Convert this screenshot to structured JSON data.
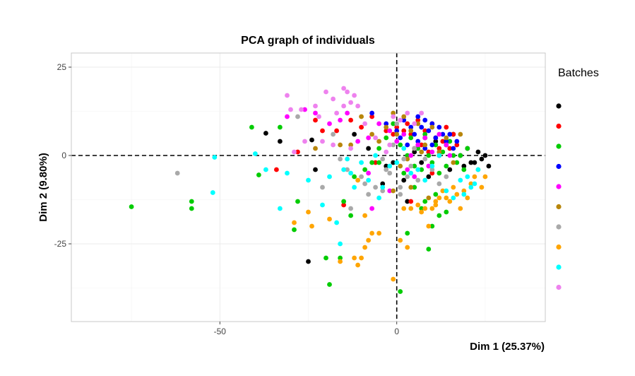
{
  "chart_data": {
    "type": "scatter",
    "title": "PCA graph of individuals",
    "xlabel": "Dim 1 (25.37%)",
    "ylabel": "Dim 2 (9.80%)",
    "xlim": [
      -92,
      42
    ],
    "ylim": [
      -47,
      29
    ],
    "x_ticks": [
      -50,
      0
    ],
    "y_ticks": [
      25,
      0,
      -25
    ],
    "x_tick_labels": [
      "-50",
      "0"
    ],
    "y_tick_labels": [
      "25",
      "0",
      "-25"
    ],
    "reference_lines": {
      "x": 0,
      "y": 0,
      "style": "dashed"
    },
    "grid": true,
    "legend": {
      "title": "Batches",
      "position": "right"
    },
    "series": [
      {
        "color": "#000000",
        "points": [
          [
            -37,
            6.3
          ],
          [
            -33,
            4
          ],
          [
            -24,
            4.4
          ],
          [
            -23,
            -4
          ],
          [
            -25,
            -30
          ],
          [
            -12,
            6
          ],
          [
            -8,
            2
          ],
          [
            -3,
            -3
          ],
          [
            -1,
            -2
          ],
          [
            2,
            -7
          ],
          [
            5,
            1
          ],
          [
            8,
            5
          ],
          [
            11,
            4
          ],
          [
            12,
            0
          ],
          [
            14,
            3
          ],
          [
            16,
            6
          ],
          [
            18,
            0
          ],
          [
            20,
            2
          ],
          [
            21,
            -2
          ],
          [
            22,
            -2
          ],
          [
            23,
            1
          ],
          [
            24,
            -1
          ],
          [
            25,
            0
          ],
          [
            26,
            -3
          ],
          [
            -4,
            -8
          ],
          [
            3,
            -13
          ],
          [
            7,
            -2
          ],
          [
            9,
            -6
          ],
          [
            15,
            -4
          ],
          [
            19,
            -3
          ]
        ]
      },
      {
        "color": "#ff0000",
        "points": [
          [
            -34,
            -4
          ],
          [
            -28,
            1
          ],
          [
            -23,
            10
          ],
          [
            -21,
            7
          ],
          [
            -17,
            7
          ],
          [
            -13,
            10
          ],
          [
            -10,
            8
          ],
          [
            -7,
            11
          ],
          [
            -3,
            7
          ],
          [
            -1,
            6
          ],
          [
            0,
            8
          ],
          [
            2,
            7
          ],
          [
            3,
            9
          ],
          [
            4,
            6
          ],
          [
            5,
            2
          ],
          [
            6,
            10
          ],
          [
            7,
            3
          ],
          [
            8,
            7
          ],
          [
            9,
            1
          ],
          [
            10,
            9
          ],
          [
            11,
            5
          ],
          [
            12,
            2
          ],
          [
            13,
            4
          ],
          [
            14,
            8
          ],
          [
            15,
            2
          ],
          [
            16,
            6
          ],
          [
            17,
            3
          ],
          [
            -6,
            -2
          ],
          [
            -15,
            -14
          ],
          [
            4,
            -13
          ],
          [
            10,
            -5
          ]
        ]
      },
      {
        "color": "#00cc00",
        "points": [
          [
            -75,
            -14.5
          ],
          [
            -58,
            -13
          ],
          [
            -58,
            -15
          ],
          [
            -41,
            8
          ],
          [
            -39,
            -5.5
          ],
          [
            -33,
            8
          ],
          [
            -29,
            -21
          ],
          [
            -28,
            -13
          ],
          [
            -20,
            -29
          ],
          [
            -19,
            -36.5
          ],
          [
            -13,
            -17
          ],
          [
            -16,
            -29
          ],
          [
            -15,
            -13
          ],
          [
            -12,
            -6
          ],
          [
            -9,
            -4
          ],
          [
            -7,
            -2
          ],
          [
            -5,
            2
          ],
          [
            -3,
            5
          ],
          [
            -1,
            9
          ],
          [
            1,
            3
          ],
          [
            2,
            -5
          ],
          [
            3,
            0
          ],
          [
            4,
            5
          ],
          [
            5,
            -3
          ],
          [
            6,
            2
          ],
          [
            7,
            -4
          ],
          [
            8,
            6
          ],
          [
            9,
            0
          ],
          [
            10,
            -2
          ],
          [
            11,
            3
          ],
          [
            12,
            -5
          ],
          [
            13,
            1
          ],
          [
            14,
            -3
          ],
          [
            15,
            4
          ],
          [
            16,
            0
          ],
          [
            17,
            -2
          ],
          [
            18,
            0
          ],
          [
            19,
            -4
          ],
          [
            20,
            2
          ],
          [
            9,
            -26.5
          ],
          [
            10,
            -20
          ],
          [
            7,
            -15
          ],
          [
            11,
            -11
          ],
          [
            12,
            -17
          ],
          [
            14,
            -16
          ],
          [
            1,
            -38.5
          ],
          [
            3,
            -22
          ],
          [
            -5,
            -2
          ],
          [
            5,
            -9
          ],
          [
            8,
            -13
          ]
        ]
      },
      {
        "color": "#0000ff",
        "points": [
          [
            -7,
            12
          ],
          [
            -3,
            9
          ],
          [
            0,
            7
          ],
          [
            2,
            10
          ],
          [
            4,
            8
          ],
          [
            5,
            6
          ],
          [
            6,
            11
          ],
          [
            7,
            8
          ],
          [
            8,
            10
          ],
          [
            9,
            7
          ],
          [
            10,
            9
          ],
          [
            11,
            5
          ],
          [
            12,
            8
          ],
          [
            13,
            6
          ],
          [
            14,
            4
          ],
          [
            15,
            6
          ],
          [
            16,
            2
          ],
          [
            17,
            4
          ],
          [
            6,
            4
          ],
          [
            8,
            2
          ],
          [
            10,
            3
          ],
          [
            3,
            3
          ],
          [
            1,
            5
          ]
        ]
      },
      {
        "color": "#ff00ff",
        "points": [
          [
            -31,
            11
          ],
          [
            -26,
            13
          ],
          [
            -23,
            12
          ],
          [
            -19,
            9
          ],
          [
            -16,
            10
          ],
          [
            -14,
            12
          ],
          [
            -11,
            4
          ],
          [
            -8,
            5
          ],
          [
            -5,
            9
          ],
          [
            -2,
            7
          ],
          [
            0,
            4
          ],
          [
            2,
            6
          ],
          [
            4,
            0
          ],
          [
            6,
            3
          ],
          [
            8,
            5
          ],
          [
            10,
            1
          ],
          [
            12,
            6
          ],
          [
            14,
            3
          ],
          [
            15,
            0
          ],
          [
            -7,
            -15
          ],
          [
            -2,
            -10
          ],
          [
            -8,
            -5
          ],
          [
            5,
            -6
          ],
          [
            9,
            -3
          ],
          [
            3,
            -4
          ]
        ]
      },
      {
        "color": "#b8860b",
        "points": [
          [
            -23,
            2
          ],
          [
            -16,
            3
          ],
          [
            -13,
            3
          ],
          [
            -10,
            11
          ],
          [
            -7,
            6
          ],
          [
            -5,
            4
          ],
          [
            -3,
            8
          ],
          [
            -1,
            12
          ],
          [
            0,
            6
          ],
          [
            2,
            11
          ],
          [
            4,
            7
          ],
          [
            6,
            9
          ],
          [
            8,
            3
          ],
          [
            10,
            8
          ],
          [
            12,
            1
          ],
          [
            14,
            5
          ],
          [
            16,
            -2
          ],
          [
            18,
            6
          ],
          [
            1,
            -3
          ],
          [
            3,
            -1
          ],
          [
            7,
            1
          ],
          [
            -1,
            -10
          ],
          [
            4,
            -9
          ],
          [
            9,
            -12
          ]
        ]
      },
      {
        "color": "#a9a9a9",
        "points": [
          [
            -62,
            -5
          ],
          [
            -28,
            11
          ],
          [
            -21,
            -9
          ],
          [
            -18,
            6
          ],
          [
            -16,
            -1
          ],
          [
            -14,
            -4
          ],
          [
            -13,
            -15
          ],
          [
            -10,
            -6
          ],
          [
            -8,
            -11
          ],
          [
            -6,
            -9
          ],
          [
            -4,
            -10
          ],
          [
            -3,
            -4
          ],
          [
            -1,
            3
          ],
          [
            0,
            9
          ],
          [
            1,
            -11
          ],
          [
            2,
            -1
          ],
          [
            3,
            -6
          ],
          [
            4,
            -3
          ],
          [
            5,
            2
          ],
          [
            6,
            -7
          ],
          [
            8,
            -1
          ],
          [
            10,
            -4
          ],
          [
            12,
            -8
          ],
          [
            14,
            -6
          ],
          [
            -4,
            -1
          ],
          [
            -2,
            -5
          ],
          [
            1,
            -9
          ],
          [
            -9,
            -8
          ]
        ]
      },
      {
        "color": "#ffa500",
        "points": [
          [
            -29,
            -19
          ],
          [
            -25,
            -16
          ],
          [
            -24,
            -20
          ],
          [
            -19,
            -18
          ],
          [
            -16,
            -30
          ],
          [
            -12,
            -29
          ],
          [
            -11,
            -31
          ],
          [
            -10,
            -29
          ],
          [
            -9,
            -26
          ],
          [
            -8,
            -24
          ],
          [
            -7,
            -22
          ],
          [
            -5,
            -22
          ],
          [
            -1,
            -35
          ],
          [
            1,
            -24
          ],
          [
            2,
            -15
          ],
          [
            3,
            -26
          ],
          [
            4,
            -15
          ],
          [
            6,
            -14
          ],
          [
            7,
            -16
          ],
          [
            8,
            -15
          ],
          [
            9,
            -20
          ],
          [
            10,
            -15
          ],
          [
            11,
            -13
          ],
          [
            12,
            -12
          ],
          [
            14,
            -12
          ],
          [
            15,
            -13
          ],
          [
            17,
            -11
          ],
          [
            18,
            -15
          ],
          [
            19,
            -10
          ],
          [
            20,
            -12
          ],
          [
            21,
            -8
          ],
          [
            22,
            -6
          ],
          [
            23,
            -4
          ],
          [
            24,
            -9
          ],
          [
            25,
            -6
          ],
          [
            -11,
            -7
          ],
          [
            -9,
            -17
          ],
          [
            11,
            -14
          ],
          [
            16,
            -9
          ],
          [
            13,
            -10
          ]
        ]
      },
      {
        "color": "#00ffff",
        "points": [
          [
            -52,
            -10.5
          ],
          [
            -51.5,
            -0.5
          ],
          [
            -40,
            0.5
          ],
          [
            -37,
            -4
          ],
          [
            -33,
            -15
          ],
          [
            -31,
            -5
          ],
          [
            -25,
            -7
          ],
          [
            -21,
            -14
          ],
          [
            -19,
            -6
          ],
          [
            -15,
            -4
          ],
          [
            -14,
            -1
          ],
          [
            -13,
            -5
          ],
          [
            -12,
            -9
          ],
          [
            -10,
            -2
          ],
          [
            -8,
            -7
          ],
          [
            -6,
            0
          ],
          [
            -4,
            -9
          ],
          [
            -2,
            -3
          ],
          [
            0,
            -2
          ],
          [
            2,
            2
          ],
          [
            4,
            -5
          ],
          [
            6,
            -4
          ],
          [
            8,
            -7
          ],
          [
            10,
            -3
          ],
          [
            12,
            0
          ],
          [
            14,
            -10
          ],
          [
            16,
            -12
          ],
          [
            18,
            -7
          ],
          [
            20,
            -6
          ],
          [
            22,
            -8
          ],
          [
            23,
            -4
          ],
          [
            -17,
            -19
          ],
          [
            -16,
            -25
          ],
          [
            -5,
            -12
          ],
          [
            19,
            -11
          ],
          [
            21,
            -9
          ]
        ]
      },
      {
        "color": "#ee82ee",
        "points": [
          [
            -31,
            17
          ],
          [
            -30,
            13
          ],
          [
            -27,
            13
          ],
          [
            -23,
            14
          ],
          [
            -20,
            18
          ],
          [
            -18,
            16
          ],
          [
            -17,
            12
          ],
          [
            -15,
            19
          ],
          [
            -14,
            18
          ],
          [
            -13,
            15
          ],
          [
            -12,
            17
          ],
          [
            -11,
            14
          ],
          [
            -29,
            1
          ],
          [
            -26,
            4
          ],
          [
            -21,
            4
          ],
          [
            -18,
            3
          ],
          [
            -13,
            2
          ],
          [
            -9,
            9
          ],
          [
            -6,
            5
          ],
          [
            -3,
            1
          ],
          [
            -1,
            11
          ],
          [
            1,
            10
          ],
          [
            3,
            12
          ],
          [
            5,
            9
          ],
          [
            7,
            12
          ],
          [
            -2,
            3
          ],
          [
            -15,
            14
          ],
          [
            -22,
            11
          ]
        ]
      }
    ]
  }
}
